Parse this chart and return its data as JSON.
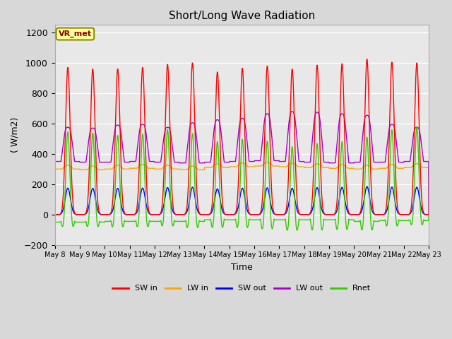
{
  "title": "Short/Long Wave Radiation",
  "xlabel": "Time",
  "ylabel": "( W/m2)",
  "ylim": [
    -200,
    1250
  ],
  "yticks": [
    -200,
    0,
    200,
    400,
    600,
    800,
    1000,
    1200
  ],
  "num_days": 15,
  "annotation": "VR_met",
  "legend": [
    "SW in",
    "LW in",
    "SW out",
    "LW out",
    "Rnet"
  ],
  "colors": {
    "SW_in": "#FF0000",
    "LW_in": "#FFA500",
    "SW_out": "#0000FF",
    "LW_out": "#AA00CC",
    "Rnet": "#33CC00"
  },
  "plot_bg": "#E8E8E8",
  "grid_color": "#FFFFFF",
  "xticklabels": [
    "May 8",
    "May 9",
    "May 10",
    "May 11",
    "May 12",
    "May 13",
    "May 14",
    "May 15",
    "May 16",
    "May 17",
    "May 18",
    "May 19",
    "May 20",
    "May 21",
    "May 22",
    "May 23"
  ],
  "SW_peaks": [
    970,
    960,
    960,
    970,
    990,
    1000,
    940,
    965,
    980,
    960,
    985,
    995,
    1025,
    1005,
    1000
  ],
  "LW_in_base": [
    300,
    295,
    300,
    305,
    300,
    295,
    310,
    315,
    320,
    315,
    310,
    305,
    300,
    305,
    310
  ],
  "LW_out_base": [
    350,
    345,
    345,
    350,
    345,
    340,
    345,
    350,
    355,
    350,
    345,
    340,
    345,
    345,
    350
  ],
  "LW_out_peaks": [
    560,
    555,
    575,
    580,
    560,
    590,
    610,
    620,
    650,
    665,
    660,
    650,
    640,
    580,
    560
  ]
}
